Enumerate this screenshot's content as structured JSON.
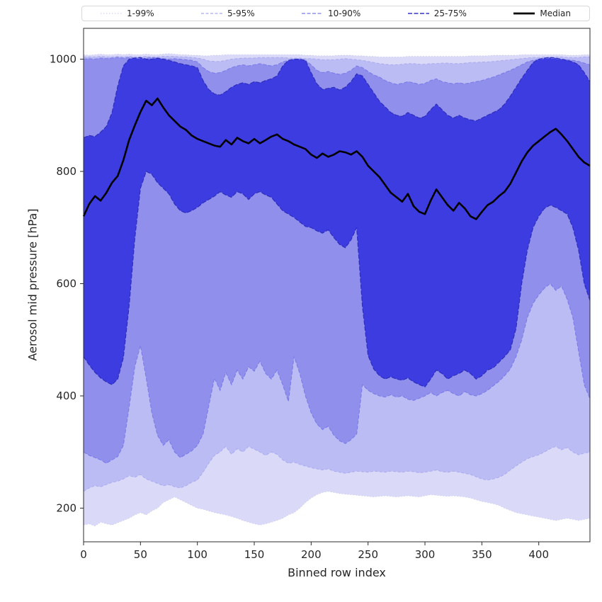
{
  "figure": {
    "background": "#ffffff",
    "frame_color": "#2b2b2b"
  },
  "legend": {
    "entries": [
      {
        "label": "1-99%",
        "color": "#c9c9f3",
        "dash": "1.5 2.5",
        "width": 1.0
      },
      {
        "label": "5-95%",
        "color": "#a9a9f0",
        "dash": "4 2.5",
        "width": 1.2
      },
      {
        "label": "10-90%",
        "color": "#7a7ae9",
        "dash": "5 2.5",
        "width": 1.3
      },
      {
        "label": "25-75%",
        "color": "#3434c9",
        "dash": "6 2.5",
        "width": 1.6
      },
      {
        "label": "Median",
        "color": "#000000",
        "dash": "",
        "width": 2.8
      }
    ]
  },
  "chart_data": {
    "type": "area",
    "title": "",
    "xlabel": "Binned row index",
    "ylabel": "Aerosol mid pressure [hPa]",
    "xlim": [
      0,
      445
    ],
    "ylim": [
      140,
      1055
    ],
    "xticks": [
      0,
      50,
      100,
      150,
      200,
      250,
      300,
      350,
      400
    ],
    "yticks": [
      200,
      400,
      600,
      800,
      1000
    ],
    "grid": false,
    "legend_position": "top",
    "x": [
      0,
      5,
      10,
      15,
      20,
      25,
      30,
      35,
      40,
      45,
      50,
      55,
      60,
      65,
      70,
      75,
      80,
      85,
      90,
      95,
      100,
      105,
      110,
      115,
      120,
      125,
      130,
      135,
      140,
      145,
      150,
      155,
      160,
      165,
      170,
      175,
      180,
      185,
      190,
      195,
      200,
      205,
      210,
      215,
      220,
      225,
      230,
      235,
      240,
      245,
      250,
      255,
      260,
      265,
      270,
      275,
      280,
      285,
      290,
      295,
      300,
      305,
      310,
      315,
      320,
      325,
      330,
      335,
      340,
      345,
      350,
      355,
      360,
      365,
      370,
      375,
      380,
      385,
      390,
      395,
      400,
      405,
      410,
      415,
      420,
      425,
      430,
      435,
      440,
      445
    ],
    "bands": [
      {
        "name": "1-99%",
        "fill": "#dadaf8",
        "line": "#c9c9f3",
        "dash": "1.5 2.5",
        "line_width": 0.9,
        "lower": [
          170,
          172,
          168,
          175,
          172,
          170,
          174,
          178,
          182,
          188,
          192,
          188,
          195,
          200,
          210,
          215,
          220,
          215,
          210,
          205,
          200,
          198,
          195,
          192,
          190,
          188,
          185,
          182,
          178,
          175,
          172,
          170,
          172,
          175,
          178,
          182,
          188,
          192,
          200,
          210,
          218,
          224,
          228,
          230,
          228,
          226,
          225,
          224,
          223,
          222,
          221,
          220,
          221,
          222,
          221,
          220,
          221,
          222,
          221,
          220,
          222,
          224,
          223,
          222,
          221,
          222,
          221,
          220,
          218,
          215,
          212,
          210,
          208,
          205,
          200,
          196,
          192,
          190,
          188,
          186,
          184,
          182,
          180,
          178,
          180,
          182,
          180,
          178,
          180,
          182
        ],
        "upper": [
          1008,
          1007,
          1008,
          1009,
          1008,
          1008,
          1009,
          1008,
          1009,
          1008,
          1008,
          1009,
          1008,
          1008,
          1009,
          1010,
          1009,
          1008,
          1008,
          1007,
          1007,
          1006,
          1006,
          1007,
          1007,
          1008,
          1008,
          1008,
          1008,
          1008,
          1008,
          1008,
          1008,
          1008,
          1008,
          1008,
          1008,
          1008,
          1008,
          1007,
          1007,
          1006,
          1006,
          1006,
          1006,
          1007,
          1007,
          1007,
          1006,
          1006,
          1005,
          1005,
          1004,
          1004,
          1004,
          1004,
          1004,
          1005,
          1005,
          1005,
          1005,
          1005,
          1005,
          1005,
          1005,
          1005,
          1005,
          1005,
          1006,
          1006,
          1006,
          1006,
          1007,
          1007,
          1007,
          1007,
          1007,
          1008,
          1008,
          1008,
          1008,
          1008,
          1008,
          1008,
          1008,
          1007,
          1007,
          1007,
          1008,
          1008
        ]
      },
      {
        "name": "5-95%",
        "fill": "#bcbcf4",
        "line": "#a9a9f0",
        "dash": "4 2.5",
        "line_width": 1.0,
        "lower": [
          230,
          236,
          240,
          238,
          242,
          246,
          248,
          252,
          258,
          255,
          260,
          252,
          248,
          244,
          240,
          242,
          238,
          236,
          240,
          246,
          250,
          264,
          280,
          294,
          300,
          310,
          296,
          306,
          300,
          310,
          305,
          300,
          294,
          300,
          296,
          286,
          280,
          282,
          278,
          275,
          272,
          270,
          268,
          270,
          266,
          264,
          262,
          264,
          266,
          265,
          264,
          266,
          265,
          264,
          266,
          265,
          264,
          266,
          265,
          263,
          264,
          266,
          268,
          265,
          264,
          266,
          264,
          262,
          260,
          256,
          252,
          250,
          252,
          255,
          260,
          268,
          275,
          282,
          288,
          292,
          295,
          300,
          306,
          310,
          304,
          308,
          300,
          295,
          298,
          300
        ],
        "upper": [
          1004,
          1004,
          1004,
          1005,
          1004,
          1004,
          1005,
          1004,
          1005,
          1004,
          1004,
          1005,
          1004,
          1004,
          1005,
          1005,
          1005,
          1004,
          1004,
          1003,
          1002,
          1000,
          997,
          996,
          996,
          998,
          1000,
          1001,
          1002,
          1002,
          1002,
          1003,
          1003,
          1003,
          1003,
          1003,
          1002,
          1002,
          1002,
          1001,
          1001,
          1000,
          999,
          999,
          999,
          1000,
          1001,
          1000,
          999,
          998,
          996,
          994,
          992,
          991,
          990,
          990,
          991,
          992,
          992,
          991,
          991,
          992,
          992,
          993,
          993,
          992,
          992,
          993,
          994,
          994,
          995,
          995,
          996,
          997,
          998,
          999,
          1000,
          1001,
          1002,
          1003,
          1003,
          1004,
          1004,
          1004,
          1004,
          1003,
          1003,
          1003,
          1004,
          1004
        ]
      },
      {
        "name": "10-90%",
        "fill": "#9090ec",
        "line": "#7a7ae9",
        "dash": "5 2.5",
        "line_width": 1.1,
        "lower": [
          300,
          294,
          290,
          286,
          280,
          286,
          292,
          312,
          380,
          452,
          490,
          432,
          370,
          330,
          312,
          322,
          300,
          290,
          296,
          302,
          312,
          332,
          382,
          432,
          410,
          442,
          420,
          446,
          430,
          452,
          444,
          462,
          440,
          430,
          446,
          420,
          390,
          470,
          440,
          400,
          370,
          350,
          340,
          346,
          330,
          320,
          315,
          322,
          332,
          420,
          410,
          404,
          400,
          398,
          402,
          398,
          400,
          394,
          392,
          396,
          400,
          406,
          400,
          406,
          410,
          404,
          400,
          408,
          402,
          400,
          404,
          410,
          418,
          426,
          436,
          448,
          470,
          500,
          540,
          565,
          580,
          592,
          600,
          588,
          596,
          572,
          540,
          480,
          420,
          395
        ],
        "upper": [
          1000,
          1001,
          1000,
          1002,
          1001,
          1002,
          1003,
          1002,
          1003,
          1002,
          1001,
          1002,
          1003,
          1002,
          1001,
          1000,
          1001,
          1000,
          999,
          998,
          995,
          985,
          978,
          975,
          976,
          980,
          985,
          988,
          990,
          988,
          990,
          992,
          990,
          988,
          990,
          995,
          998,
          1000,
          1000,
          998,
          990,
          980,
          976,
          978,
          975,
          973,
          975,
          980,
          988,
          985,
          978,
          972,
          968,
          962,
          958,
          955,
          957,
          960,
          958,
          955,
          957,
          962,
          965,
          960,
          958,
          956,
          958,
          956,
          958,
          960,
          962,
          965,
          968,
          972,
          976,
          980,
          985,
          990,
          995,
          998,
          1000,
          1001,
          1002,
          1001,
          1000,
          999,
          998,
          996,
          993,
          990
        ]
      },
      {
        "name": "25-75%",
        "fill": "#3c3ce0",
        "line": "#2e2ebc",
        "dash": "6 2.5",
        "line_width": 1.2,
        "lower": [
          470,
          455,
          442,
          432,
          425,
          420,
          430,
          468,
          560,
          680,
          770,
          800,
          795,
          780,
          770,
          760,
          742,
          730,
          726,
          730,
          736,
          744,
          750,
          756,
          764,
          758,
          754,
          764,
          760,
          750,
          760,
          764,
          758,
          754,
          742,
          730,
          724,
          718,
          710,
          702,
          700,
          694,
          690,
          696,
          682,
          670,
          664,
          678,
          700,
          560,
          472,
          448,
          436,
          430,
          434,
          430,
          428,
          432,
          425,
          420,
          416,
          430,
          446,
          440,
          430,
          436,
          440,
          446,
          440,
          430,
          436,
          446,
          450,
          460,
          470,
          482,
          520,
          600,
          660,
          700,
          720,
          734,
          740,
          736,
          730,
          724,
          700,
          660,
          600,
          570
        ],
        "upper": [
          860,
          864,
          862,
          870,
          880,
          905,
          952,
          988,
          1000,
          1002,
          1003,
          1000,
          1000,
          1002,
          1000,
          998,
          995,
          992,
          990,
          988,
          985,
          962,
          946,
          938,
          936,
          942,
          950,
          955,
          958,
          955,
          960,
          958,
          962,
          965,
          970,
          988,
          998,
          1000,
          1000,
          998,
          976,
          956,
          946,
          948,
          950,
          945,
          950,
          960,
          974,
          970,
          955,
          940,
          925,
          915,
          905,
          900,
          898,
          905,
          900,
          895,
          898,
          910,
          920,
          910,
          900,
          895,
          900,
          895,
          892,
          890,
          895,
          900,
          905,
          910,
          920,
          934,
          950,
          966,
          980,
          994,
          1000,
          1002,
          1003,
          1002,
          1000,
          998,
          995,
          990,
          976,
          960
        ]
      }
    ],
    "median": {
      "name": "Median",
      "color": "#000000",
      "line_width": 2.6,
      "values": [
        720,
        742,
        756,
        748,
        762,
        780,
        792,
        820,
        856,
        882,
        906,
        926,
        918,
        930,
        914,
        900,
        890,
        880,
        874,
        864,
        858,
        854,
        850,
        846,
        844,
        856,
        848,
        860,
        854,
        850,
        858,
        850,
        856,
        862,
        866,
        858,
        854,
        848,
        844,
        840,
        830,
        824,
        832,
        826,
        830,
        836,
        834,
        830,
        836,
        826,
        810,
        800,
        790,
        776,
        762,
        754,
        746,
        760,
        738,
        728,
        724,
        748,
        768,
        754,
        740,
        730,
        744,
        734,
        720,
        715,
        728,
        740,
        746,
        756,
        764,
        778,
        798,
        818,
        834,
        846,
        854,
        862,
        870,
        876,
        866,
        854,
        840,
        826,
        816,
        810
      ]
    }
  }
}
